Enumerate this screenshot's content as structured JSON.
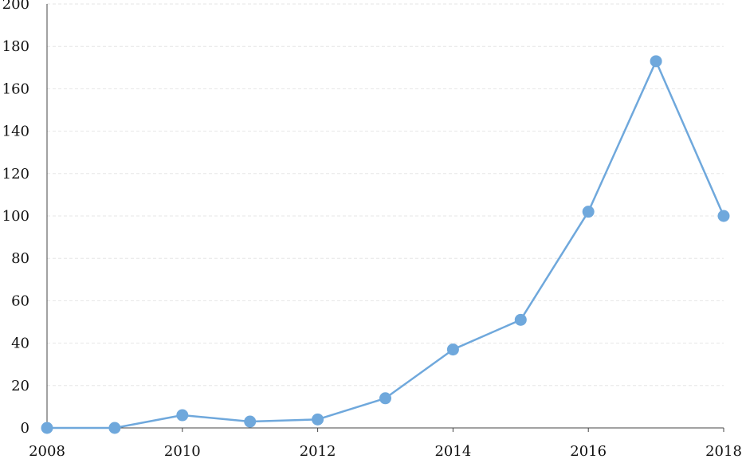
{
  "chart_data": {
    "type": "line",
    "title": "",
    "xlabel": "",
    "ylabel": "",
    "x": [
      2008,
      2009,
      2010,
      2011,
      2012,
      2013,
      2014,
      2015,
      2016,
      2017,
      2018
    ],
    "series": [
      {
        "values": [
          0,
          0,
          6,
          3,
          4,
          14,
          37,
          51,
          102,
          173,
          100
        ]
      }
    ],
    "xlim": [
      2008,
      2018
    ],
    "ylim": [
      0,
      200
    ],
    "xticks": [
      2008,
      2010,
      2012,
      2014,
      2016,
      2018
    ],
    "yticks": [
      0,
      20,
      40,
      60,
      80,
      100,
      120,
      140,
      160,
      180,
      200
    ],
    "xtick_labels": [
      "2008",
      "2010",
      "2012",
      "2014",
      "2016",
      "2018"
    ],
    "ytick_labels": [
      "0",
      "20",
      "40",
      "60",
      "80",
      "100",
      "120",
      "140",
      "160",
      "180",
      "200"
    ],
    "grid": true,
    "legend": "none",
    "colors": {
      "series": "#6fa8dc",
      "grid": "#e6e6e6",
      "axis": "#444444",
      "text": "#111111"
    }
  }
}
